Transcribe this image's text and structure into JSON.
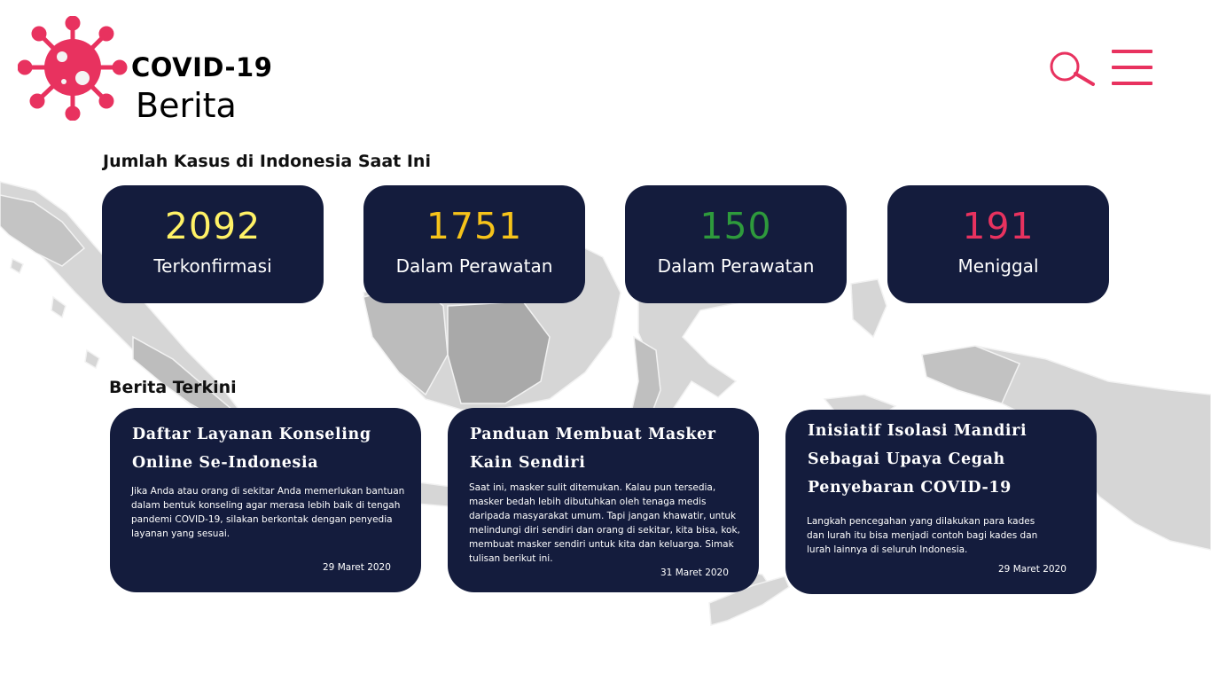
{
  "header": {
    "logo_title": "COVID-19",
    "logo_subtitle": "Berita",
    "accent_color": "#e8325f",
    "search_icon": "search-icon",
    "menu_icon": "hamburger-menu-icon"
  },
  "cases": {
    "title": "Jumlah Kasus di Indonesia Saat Ini",
    "card_color": "#141c3d",
    "stats": [
      {
        "value": "2092",
        "label": "Terkonfirmasi",
        "color": "#fff266"
      },
      {
        "value": "1751",
        "label": "Dalam Perawatan",
        "color": "#f6c31a"
      },
      {
        "value": "150",
        "label": "Dalam Perawatan",
        "color": "#2e9a3c"
      },
      {
        "value": "191",
        "label": "Meniggal",
        "color": "#e8325f"
      }
    ]
  },
  "news": {
    "title": "Berita Terkini",
    "items": [
      {
        "title": "Daftar Layanan Konseling Online Se-Indonesia",
        "body": "Jika Anda atau orang di sekitar Anda memerlukan bantuan dalam bentuk konseling agar merasa lebih baik di tengah pandemi COVID-19, silakan berkontak dengan penyedia layanan yang sesuai.",
        "date": "29 Maret 2020"
      },
      {
        "title": "Panduan Membuat Masker Kain Sendiri",
        "body": "Saat ini, masker sulit ditemukan. Kalau pun tersedia, masker bedah lebih dibutuhkan oleh tenaga medis daripada masyarakat umum. Tapi jangan khawatir, untuk melindungi diri sendiri dan orang di sekitar, kita bisa, kok, membuat masker sendiri untuk kita dan keluarga. Simak tulisan berikut ini.",
        "date": "31 Maret 2020"
      },
      {
        "title": "Inisiatif Isolasi Mandiri Sebagai Upaya Cegah Penyebaran COVID-19",
        "body": "Langkah pencegahan yang dilakukan para kades dan lurah itu bisa menjadi contoh bagi kades dan lurah lainnya di seluruh Indonesia.",
        "date": "29 Maret 2020"
      }
    ]
  }
}
